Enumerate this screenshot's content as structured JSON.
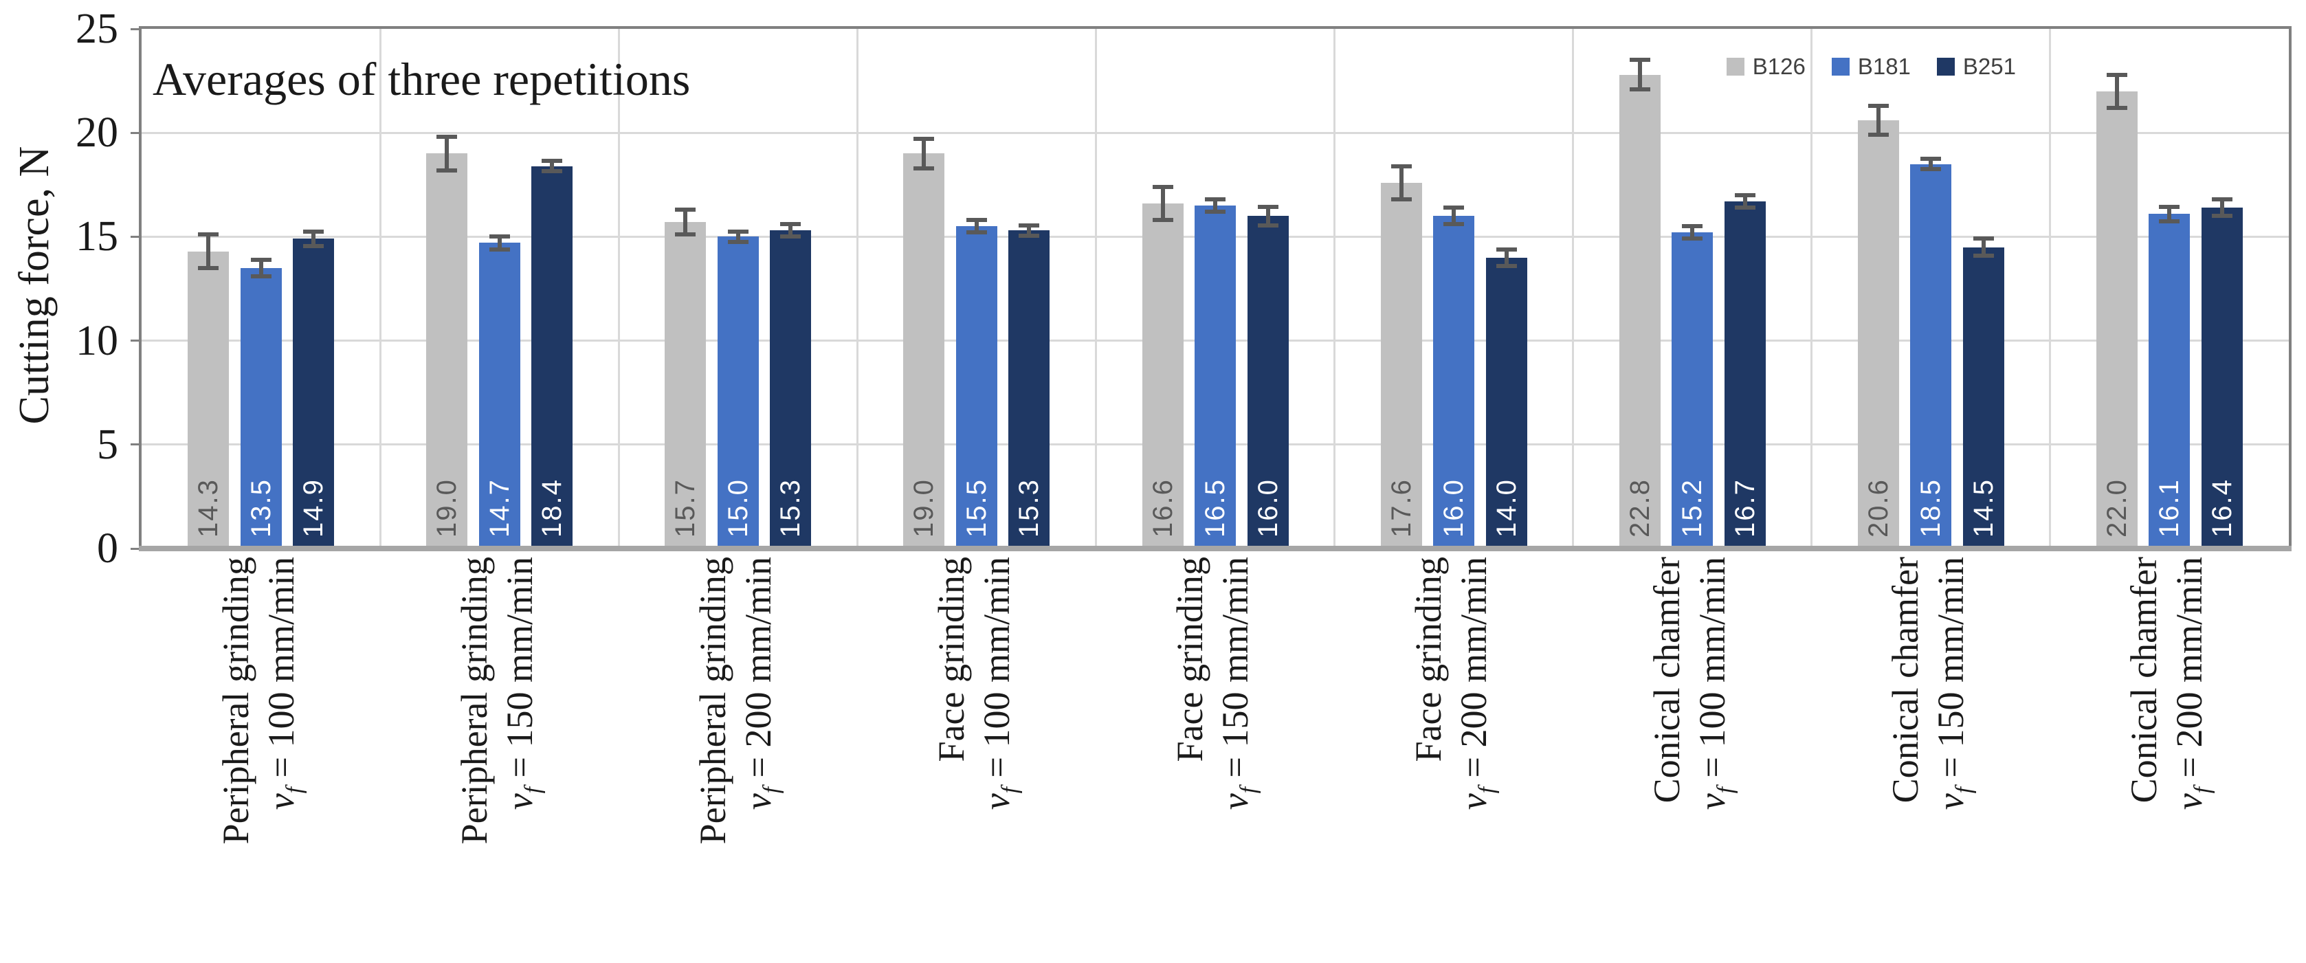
{
  "chart_data": {
    "type": "bar",
    "title": "Averages of three repetitions",
    "ylabel": "Cutting force, N",
    "xlabel": "",
    "ylim": [
      0,
      25
    ],
    "yticks": [
      0,
      5,
      10,
      15,
      20,
      25
    ],
    "grid": true,
    "legend_position": "top-right",
    "feed_symbol": {
      "base": "v",
      "sub": "f"
    },
    "categories": [
      {
        "process": "Peripheral grinding",
        "feed": "= 100 mm/min"
      },
      {
        "process": "Peripheral grinding",
        "feed": "= 150 mm/min"
      },
      {
        "process": "Peripheral grinding",
        "feed": "= 200 mm/min"
      },
      {
        "process": "Face grinding",
        "feed": "= 100 mm/min"
      },
      {
        "process": "Face grinding",
        "feed": "= 150 mm/min"
      },
      {
        "process": "Face grinding",
        "feed": "= 200 mm/min"
      },
      {
        "process": "Conical chamfer",
        "feed": "= 100 mm/min"
      },
      {
        "process": "Conical chamfer",
        "feed": "= 150 mm/min"
      },
      {
        "process": "Conical chamfer",
        "feed": "= 200 mm/min"
      }
    ],
    "series": [
      {
        "name": "B126",
        "color": "#c0c0c0",
        "label_color": "#595959",
        "values": [
          14.3,
          19.0,
          15.7,
          19.0,
          16.6,
          17.6,
          22.8,
          20.6,
          22.0
        ],
        "errors": [
          0.9,
          0.9,
          0.7,
          0.8,
          0.9,
          0.9,
          0.8,
          0.8,
          0.9
        ]
      },
      {
        "name": "B181",
        "color": "#4472c4",
        "label_color": "#ffffff",
        "values": [
          13.5,
          14.7,
          15.0,
          15.5,
          16.5,
          16.0,
          15.2,
          18.5,
          16.1
        ],
        "errors": [
          0.5,
          0.4,
          0.35,
          0.4,
          0.4,
          0.5,
          0.4,
          0.35,
          0.45
        ]
      },
      {
        "name": "B251",
        "color": "#1f3864",
        "label_color": "#ffffff",
        "values": [
          14.9,
          18.4,
          15.3,
          15.3,
          16.0,
          14.0,
          16.7,
          14.5,
          16.4
        ],
        "errors": [
          0.45,
          0.35,
          0.4,
          0.35,
          0.55,
          0.5,
          0.4,
          0.5,
          0.5
        ]
      }
    ]
  }
}
